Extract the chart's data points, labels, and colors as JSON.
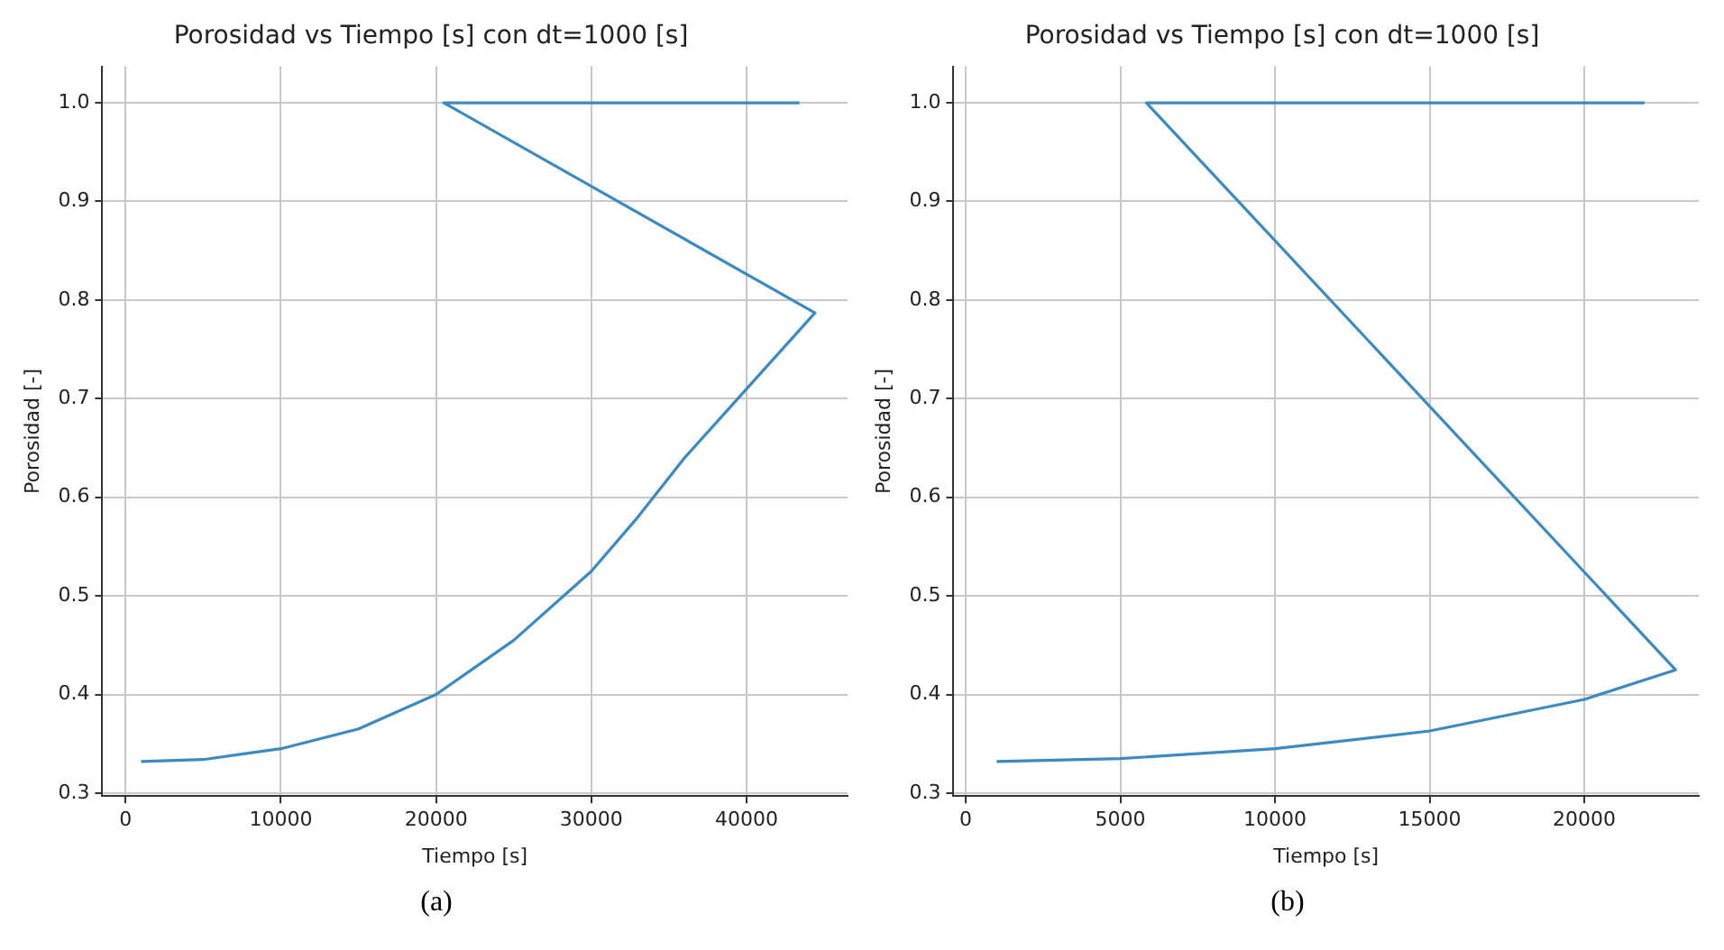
{
  "chart_data": [
    {
      "type": "line",
      "title": "Porosidad vs Tiempo [s] con dt=1000 [s]",
      "xlabel": "Tiempo [s]",
      "ylabel": "Porosidad [-]",
      "annotations": [
        "(a)"
      ],
      "grid": true,
      "marker": "none",
      "line_style": "solid",
      "x": [
        1000,
        5000,
        10000,
        15000,
        20000,
        25000,
        30000,
        33000,
        36000,
        40000,
        44400,
        20500,
        43400
      ],
      "series": [
        {
          "color": "#3b8bc2",
          "values": [
            0.332,
            0.334,
            0.345,
            0.365,
            0.4,
            0.455,
            0.525,
            0.58,
            0.64,
            0.71,
            0.787,
            1.0,
            1.0
          ]
        }
      ],
      "xlim": [
        -1500,
        46500
      ],
      "xticks": [
        0,
        10000,
        20000,
        30000,
        40000
      ],
      "ylim": [
        0.297,
        1.037
      ],
      "yticks": [
        {
          "value": 0.3,
          "label": "0.3"
        },
        {
          "value": 0.4,
          "label": "0.4"
        },
        {
          "value": 0.5,
          "label": "0.5"
        },
        {
          "value": 0.6,
          "label": "0.6"
        },
        {
          "value": 0.7,
          "label": "0.7"
        },
        {
          "value": 0.8,
          "label": "0.8"
        },
        {
          "value": 0.9,
          "label": "0.9"
        },
        {
          "value": 1.0,
          "label": "1.0"
        }
      ]
    },
    {
      "type": "line",
      "title": "Porosidad vs Tiempo [s] con dt=1000 [s]",
      "xlabel": "Tiempo [s]",
      "ylabel": "Porosidad [-]",
      "annotations": [
        "(b)"
      ],
      "grid": true,
      "marker": "none",
      "line_style": "solid",
      "x": [
        1000,
        5000,
        10000,
        15000,
        20000,
        22950,
        5840,
        21950
      ],
      "series": [
        {
          "color": "#3b8bc2",
          "values": [
            0.332,
            0.335,
            0.345,
            0.363,
            0.395,
            0.425,
            1.0,
            1.0
          ]
        }
      ],
      "xlim": [
        -400,
        23700
      ],
      "xticks": [
        0,
        5000,
        10000,
        15000,
        20000
      ],
      "ylim": [
        0.297,
        1.037
      ],
      "yticks": [
        {
          "value": 0.3,
          "label": "0.3"
        },
        {
          "value": 0.4,
          "label": "0.4"
        },
        {
          "value": 0.5,
          "label": "0.5"
        },
        {
          "value": 0.6,
          "label": "0.6"
        },
        {
          "value": 0.7,
          "label": "0.7"
        },
        {
          "value": 0.8,
          "label": "0.8"
        },
        {
          "value": 0.9,
          "label": "0.9"
        },
        {
          "value": 1.0,
          "label": "1.0"
        }
      ]
    }
  ]
}
